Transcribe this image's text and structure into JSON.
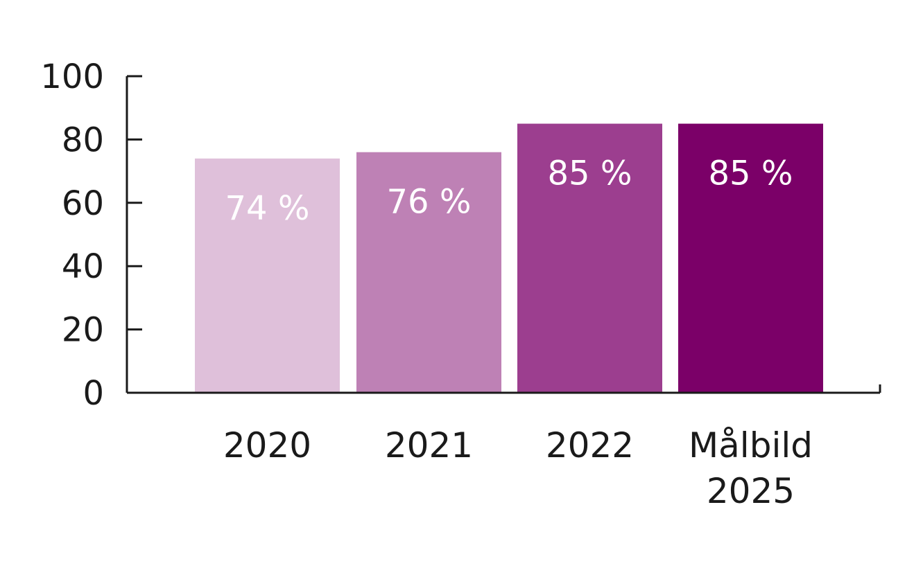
{
  "chart_data": {
    "type": "bar",
    "categories": [
      [
        "2020"
      ],
      [
        "2021"
      ],
      [
        "2022"
      ],
      [
        "Målbild",
        "2025"
      ]
    ],
    "values": [
      74,
      76,
      85,
      85
    ],
    "data_labels": [
      "74 %",
      "76 %",
      "85 %",
      "85 %"
    ],
    "colors": [
      "#dfc0da",
      "#be81b5",
      "#9c3e8f",
      "#7b0068"
    ],
    "label_color": "#ffffff",
    "axis_color": "#1a1a1a",
    "ylim": [
      0,
      100
    ],
    "yticks": [
      0,
      20,
      40,
      60,
      80,
      100
    ],
    "grid": false,
    "title": "",
    "xlabel": "",
    "ylabel": ""
  }
}
